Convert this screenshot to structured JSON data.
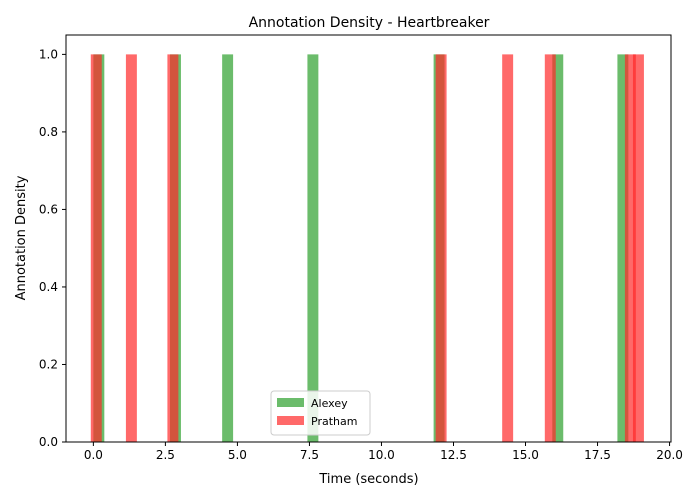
{
  "chart_data": {
    "type": "bar",
    "title": "Annotation Density - Heartbreaker",
    "xlabel": "Time (seconds)",
    "ylabel": "Annotation Density",
    "xlim": [
      -0.95,
      20.05
    ],
    "ylim": [
      0,
      1.05
    ],
    "xticks": [
      0.0,
      2.5,
      5.0,
      7.5,
      10.0,
      12.5,
      15.0,
      17.5,
      20.0
    ],
    "xtick_labels": [
      "0.0",
      "2.5",
      "5.0",
      "7.5",
      "10.0",
      "12.5",
      "15.0",
      "17.5",
      "20.0"
    ],
    "yticks": [
      0.0,
      0.2,
      0.4,
      0.6,
      0.8,
      1.0
    ],
    "ytick_labels": [
      "0.0",
      "0.2",
      "0.4",
      "0.6",
      "0.8",
      "1.0"
    ],
    "grid": false,
    "legend_position": "lower center",
    "bar_width": 0.38,
    "series": [
      {
        "name": "Alexey",
        "color": "#2ca02c",
        "opacity": 0.7,
        "x": [
          0.19,
          2.85,
          4.66,
          7.62,
          12.0,
          16.12,
          18.38
        ],
        "values": [
          1,
          1,
          1,
          1,
          1,
          1,
          1
        ]
      },
      {
        "name": "Pratham",
        "color": "#ff2a2a",
        "opacity": 0.7,
        "x": [
          0.1,
          1.32,
          2.76,
          12.07,
          14.38,
          15.86,
          18.64,
          18.92
        ],
        "values": [
          1,
          1,
          1,
          1,
          1,
          1,
          1,
          1
        ]
      }
    ]
  }
}
